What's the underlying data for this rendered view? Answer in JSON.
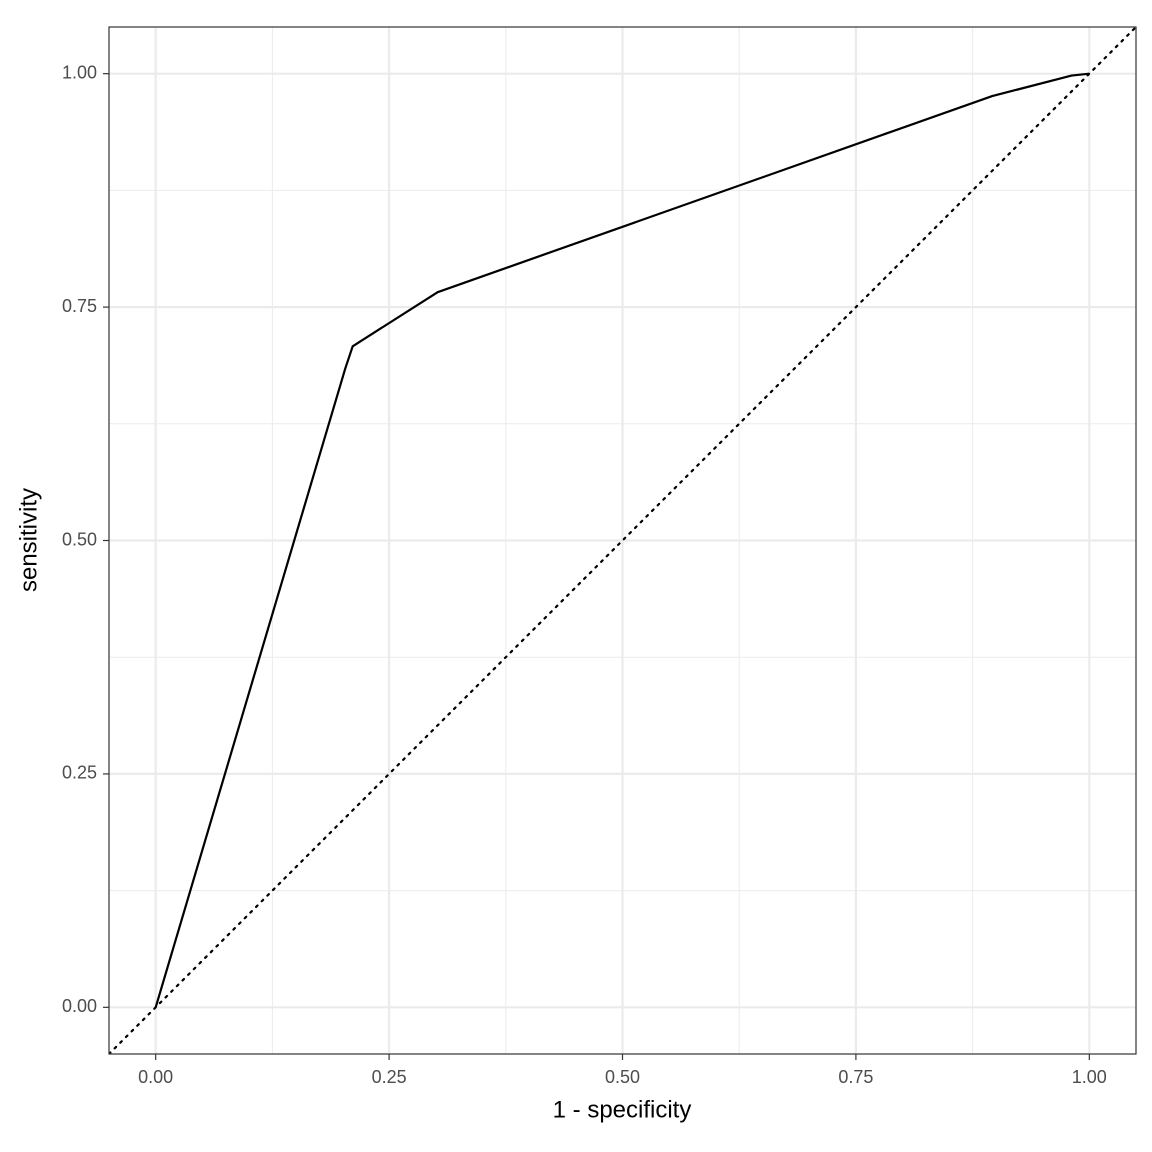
{
  "chart_data": {
    "type": "line",
    "xlabel": "1 - specificity",
    "ylabel": "sensitivity",
    "x_label_placeholder_free": null,
    "series": [
      {
        "color": "#000000",
        "x": [
          0,
          0.203,
          0.211,
          0.302,
          0.896,
          0.981,
          1
        ],
        "values": [
          0,
          0.684,
          0.708,
          0.766,
          0.976,
          0.998,
          1
        ]
      }
    ],
    "reference_line": {
      "slope": 1,
      "intercept": 0,
      "style": "dotted"
    },
    "xlim": [
      -0.05,
      1.05
    ],
    "ylim": [
      -0.05,
      1.05
    ],
    "xticks": [
      {
        "value": 0,
        "label": "0.00"
      },
      {
        "value": 0.25,
        "label": "0.25"
      },
      {
        "value": 0.5,
        "label": "0.50"
      },
      {
        "value": 0.75,
        "label": "0.75"
      },
      {
        "value": 1,
        "label": "1.00"
      }
    ],
    "yticks": [
      {
        "value": 0,
        "label": "0.00"
      },
      {
        "value": 0.25,
        "label": "0.25"
      },
      {
        "value": 0.5,
        "label": "0.50"
      },
      {
        "value": 0.75,
        "label": "0.75"
      },
      {
        "value": 1,
        "label": "1.00"
      }
    ],
    "minor_xticks": [
      0.125,
      0.375,
      0.625,
      0.875
    ],
    "minor_yticks": [
      0.125,
      0.375,
      0.625,
      0.875
    ],
    "grid": true
  }
}
